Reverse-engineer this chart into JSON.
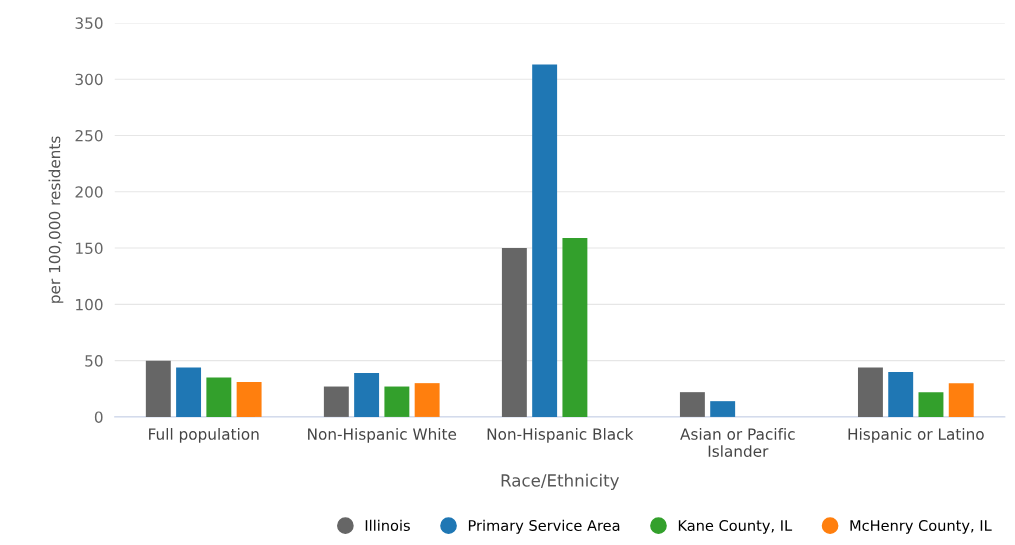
{
  "chart_data": {
    "type": "bar",
    "xlabel": "Race/Ethnicity",
    "ylabel": "per 100,000 residents",
    "categories": [
      "Full population",
      "Non-Hispanic White",
      "Non-Hispanic Black",
      "Asian or Pacific\nIslander",
      "Hispanic or Latino"
    ],
    "series": [
      {
        "name": "Illinois",
        "color": "#666666",
        "values": [
          50,
          27,
          150,
          22,
          44
        ]
      },
      {
        "name": "Primary Service Area",
        "color": "#1f77b4",
        "values": [
          44,
          39,
          313,
          14,
          40
        ]
      },
      {
        "name": "Kane County, IL",
        "color": "#33a02c",
        "values": [
          35,
          27,
          159,
          null,
          22
        ]
      },
      {
        "name": "McHenry County, IL",
        "color": "#ff7f0e",
        "values": [
          31,
          30,
          null,
          null,
          30
        ]
      }
    ],
    "ylim": [
      0,
      350
    ],
    "yticks": [
      0,
      50,
      100,
      150,
      200,
      250,
      300,
      350
    ],
    "grid": "y",
    "legend": "bottom"
  }
}
